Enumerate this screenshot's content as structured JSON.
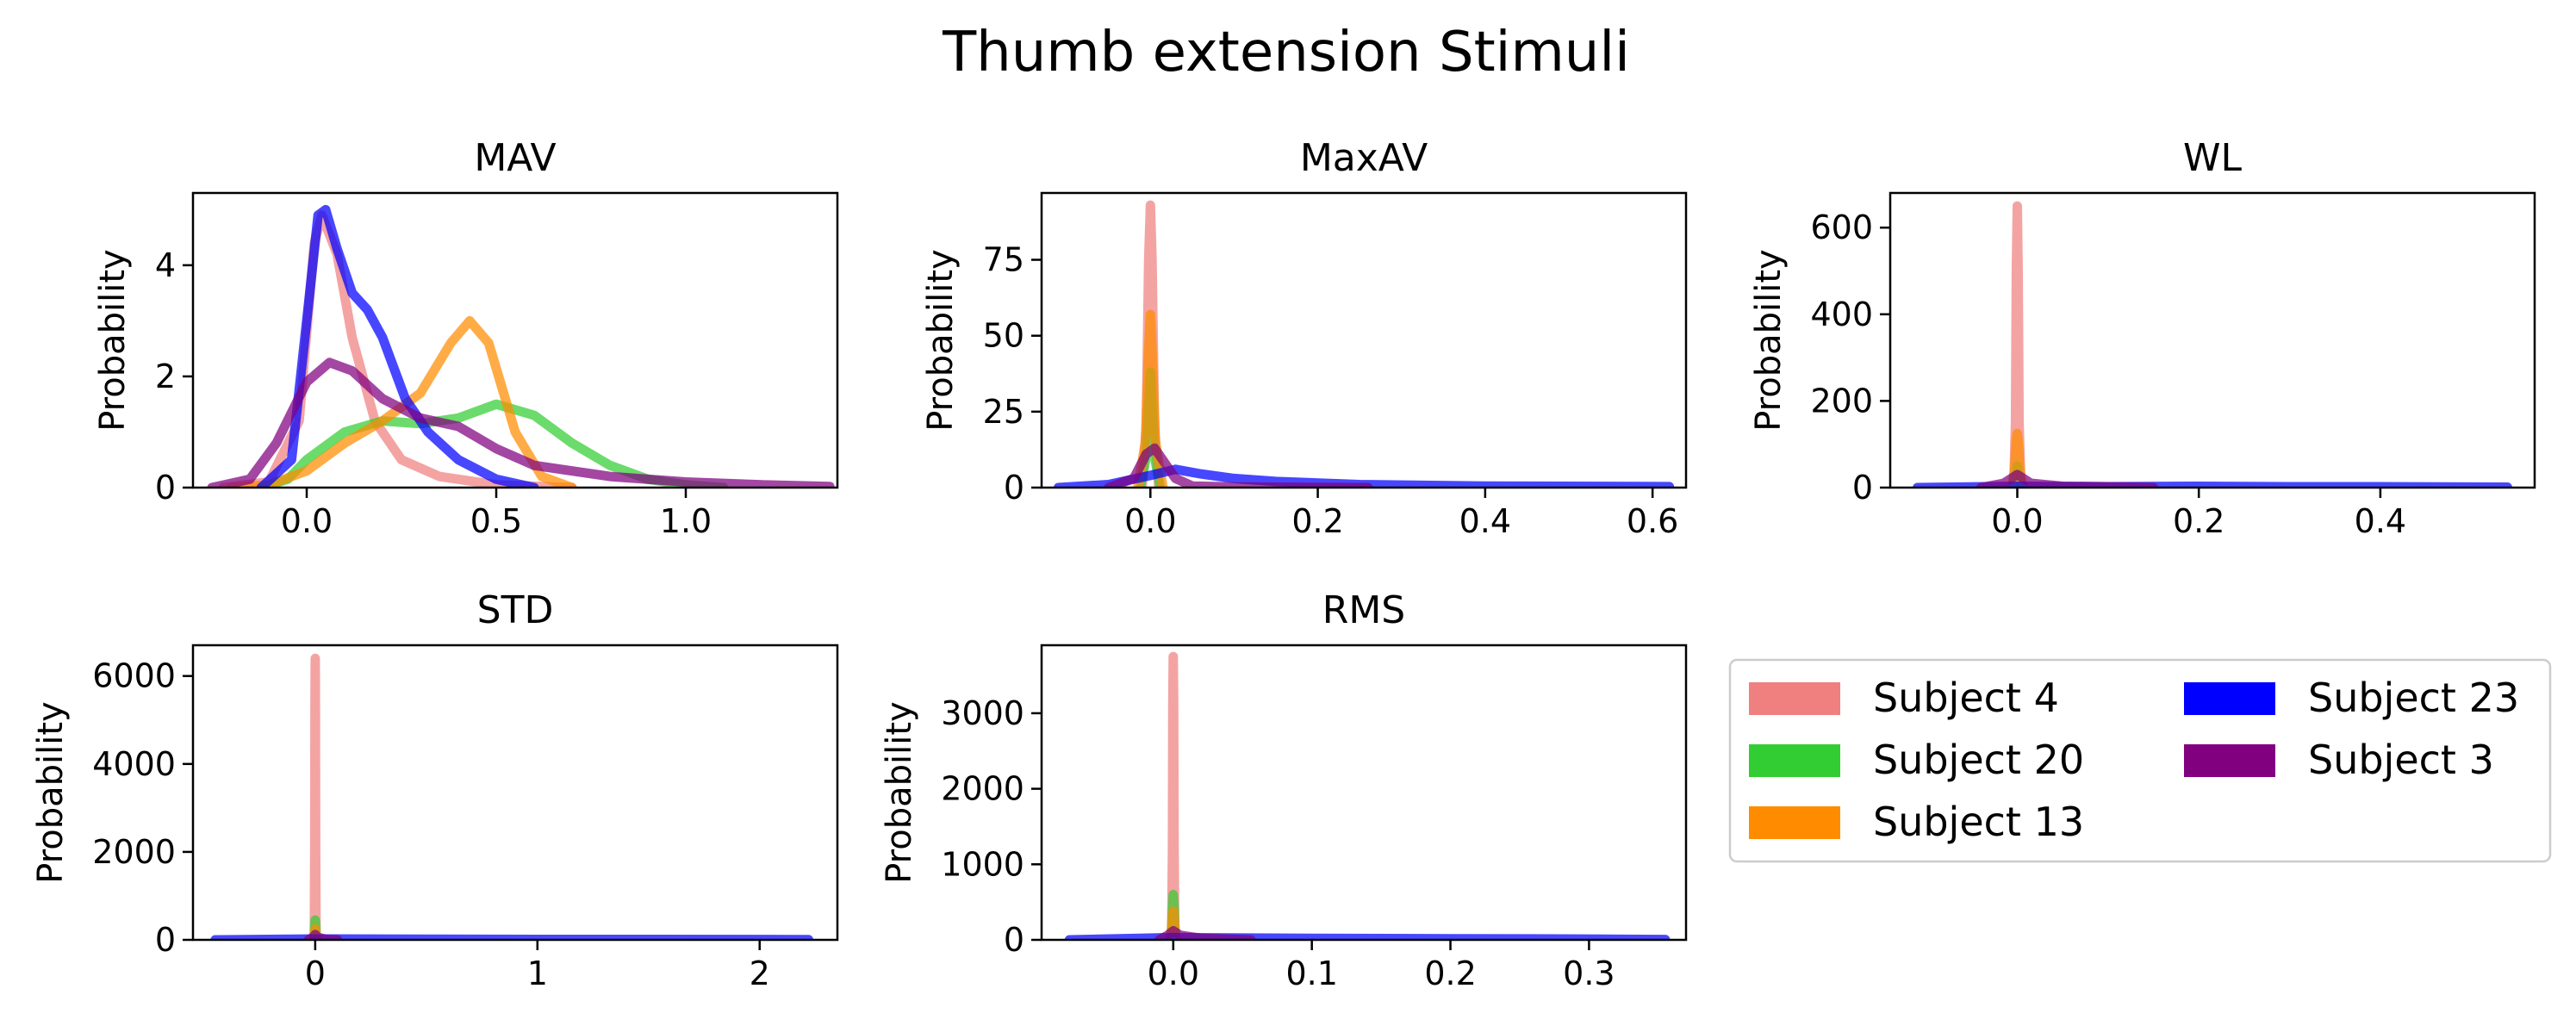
{
  "figure": {
    "title": "Thumb extension Stimuli"
  },
  "colors": {
    "Subject 4": "#f08080",
    "Subject 20": "#32cd32",
    "Subject 13": "#ff8c00",
    "Subject 23": "#0000ff",
    "Subject 3": "#800080"
  },
  "legend": {
    "placement": "lower-right",
    "columns": 2,
    "entries": [
      "Subject 4",
      "Subject 20",
      "Subject 13",
      "Subject 23",
      "Subject 3"
    ]
  },
  "chart_data": [
    {
      "type": "line",
      "title": "MAV",
      "xlabel": "",
      "ylabel": "Probability",
      "xlim": [
        -0.3,
        1.4
      ],
      "ylim": [
        0,
        5.3
      ],
      "xticks": [
        0.0,
        0.5,
        1.0
      ],
      "xtick_labels": [
        "0.0",
        "0.5",
        "1.0"
      ],
      "yticks": [
        0,
        2,
        4
      ],
      "ytick_labels": [
        "0",
        "2",
        "4"
      ],
      "series": [
        {
          "name": "Subject 4",
          "points": [
            [
              -0.22,
              0
            ],
            [
              -0.1,
              0.1
            ],
            [
              -0.02,
              1.2
            ],
            [
              0.02,
              4.4
            ],
            [
              0.04,
              4.9
            ],
            [
              0.08,
              4.2
            ],
            [
              0.12,
              2.7
            ],
            [
              0.18,
              1.2
            ],
            [
              0.25,
              0.5
            ],
            [
              0.35,
              0.2
            ],
            [
              0.5,
              0.05
            ],
            [
              0.7,
              0
            ]
          ]
        },
        {
          "name": "Subject 20",
          "points": [
            [
              -0.12,
              0
            ],
            [
              -0.05,
              0.15
            ],
            [
              0.0,
              0.5
            ],
            [
              0.1,
              1.0
            ],
            [
              0.2,
              1.2
            ],
            [
              0.3,
              1.15
            ],
            [
              0.4,
              1.25
            ],
            [
              0.5,
              1.5
            ],
            [
              0.6,
              1.3
            ],
            [
              0.7,
              0.8
            ],
            [
              0.8,
              0.4
            ],
            [
              0.9,
              0.15
            ],
            [
              1.0,
              0.05
            ],
            [
              1.1,
              0
            ]
          ]
        },
        {
          "name": "Subject 13",
          "points": [
            [
              -0.2,
              0
            ],
            [
              -0.1,
              0.05
            ],
            [
              0.0,
              0.3
            ],
            [
              0.1,
              0.8
            ],
            [
              0.2,
              1.2
            ],
            [
              0.3,
              1.7
            ],
            [
              0.38,
              2.6
            ],
            [
              0.43,
              3.0
            ],
            [
              0.48,
              2.6
            ],
            [
              0.55,
              1.0
            ],
            [
              0.62,
              0.2
            ],
            [
              0.7,
              0
            ]
          ]
        },
        {
          "name": "Subject 23",
          "points": [
            [
              -0.12,
              0
            ],
            [
              -0.04,
              0.5
            ],
            [
              0.0,
              3.0
            ],
            [
              0.03,
              4.9
            ],
            [
              0.05,
              5.0
            ],
            [
              0.08,
              4.3
            ],
            [
              0.12,
              3.5
            ],
            [
              0.16,
              3.2
            ],
            [
              0.2,
              2.7
            ],
            [
              0.26,
              1.6
            ],
            [
              0.32,
              1.0
            ],
            [
              0.4,
              0.5
            ],
            [
              0.5,
              0.15
            ],
            [
              0.6,
              0
            ]
          ]
        },
        {
          "name": "Subject 3",
          "points": [
            [
              -0.25,
              0
            ],
            [
              -0.15,
              0.15
            ],
            [
              -0.08,
              0.8
            ],
            [
              0.0,
              1.9
            ],
            [
              0.06,
              2.25
            ],
            [
              0.12,
              2.1
            ],
            [
              0.2,
              1.6
            ],
            [
              0.3,
              1.25
            ],
            [
              0.4,
              1.1
            ],
            [
              0.5,
              0.7
            ],
            [
              0.6,
              0.4
            ],
            [
              0.8,
              0.2
            ],
            [
              1.0,
              0.1
            ],
            [
              1.2,
              0.05
            ],
            [
              1.38,
              0.02
            ]
          ]
        }
      ]
    },
    {
      "type": "line",
      "title": "MaxAV",
      "xlabel": "",
      "ylabel": "Probability",
      "xlim": [
        -0.13,
        0.64
      ],
      "ylim": [
        0,
        97
      ],
      "xticks": [
        0.0,
        0.2,
        0.4,
        0.6
      ],
      "xtick_labels": [
        "0.0",
        "0.2",
        "0.4",
        "0.6"
      ],
      "yticks": [
        0,
        25,
        50,
        75
      ],
      "ytick_labels": [
        "0",
        "25",
        "50",
        "75"
      ],
      "series": [
        {
          "name": "Subject 4",
          "points": [
            [
              -0.01,
              0
            ],
            [
              -0.005,
              20
            ],
            [
              -0.002,
              75
            ],
            [
              0.0,
              93
            ],
            [
              0.002,
              75
            ],
            [
              0.005,
              20
            ],
            [
              0.01,
              0
            ]
          ]
        },
        {
          "name": "Subject 20",
          "points": [
            [
              -0.012,
              0
            ],
            [
              -0.005,
              10
            ],
            [
              0.0,
              38
            ],
            [
              0.005,
              10
            ],
            [
              0.012,
              0
            ]
          ]
        },
        {
          "name": "Subject 13",
          "points": [
            [
              -0.015,
              0
            ],
            [
              -0.006,
              15
            ],
            [
              -0.002,
              45
            ],
            [
              0.0,
              57
            ],
            [
              0.002,
              45
            ],
            [
              0.006,
              15
            ],
            [
              0.015,
              0
            ]
          ]
        },
        {
          "name": "Subject 23",
          "points": [
            [
              -0.11,
              0
            ],
            [
              -0.05,
              1
            ],
            [
              0.0,
              4
            ],
            [
              0.03,
              6
            ],
            [
              0.06,
              4.5
            ],
            [
              0.1,
              3
            ],
            [
              0.15,
              2
            ],
            [
              0.25,
              1
            ],
            [
              0.4,
              0.5
            ],
            [
              0.62,
              0.3
            ]
          ]
        },
        {
          "name": "Subject 3",
          "points": [
            [
              -0.05,
              0
            ],
            [
              -0.02,
              3
            ],
            [
              -0.005,
              11
            ],
            [
              0.005,
              13
            ],
            [
              0.015,
              9
            ],
            [
              0.03,
              3
            ],
            [
              0.05,
              0.5
            ],
            [
              0.1,
              0.2
            ],
            [
              0.26,
              0
            ]
          ]
        }
      ]
    },
    {
      "type": "line",
      "title": "WL",
      "xlabel": "",
      "ylabel": "Probability",
      "xlim": [
        -0.14,
        0.57
      ],
      "ylim": [
        0,
        680
      ],
      "xticks": [
        0.0,
        0.2,
        0.4
      ],
      "xtick_labels": [
        "0.0",
        "0.2",
        "0.4"
      ],
      "yticks": [
        0,
        200,
        400,
        600
      ],
      "ytick_labels": [
        "0",
        "200",
        "400",
        "600"
      ],
      "series": [
        {
          "name": "Subject 4",
          "points": [
            [
              -0.004,
              0
            ],
            [
              -0.002,
              150
            ],
            [
              -0.001,
              500
            ],
            [
              0.0,
              650
            ],
            [
              0.001,
              500
            ],
            [
              0.002,
              150
            ],
            [
              0.004,
              0
            ]
          ]
        },
        {
          "name": "Subject 20",
          "points": [
            [
              -0.005,
              0
            ],
            [
              -0.002,
              25
            ],
            [
              0.0,
              50
            ],
            [
              0.002,
              25
            ],
            [
              0.005,
              0
            ]
          ]
        },
        {
          "name": "Subject 13",
          "points": [
            [
              -0.006,
              0
            ],
            [
              -0.003,
              40
            ],
            [
              -0.001,
              110
            ],
            [
              0.0,
              125
            ],
            [
              0.001,
              110
            ],
            [
              0.003,
              40
            ],
            [
              0.006,
              0
            ]
          ]
        },
        {
          "name": "Subject 23",
          "points": [
            [
              -0.11,
              0
            ],
            [
              0.0,
              3
            ],
            [
              0.1,
              2
            ],
            [
              0.2,
              3
            ],
            [
              0.3,
              2
            ],
            [
              0.4,
              2
            ],
            [
              0.54,
              1
            ]
          ]
        },
        {
          "name": "Subject 3",
          "points": [
            [
              -0.04,
              0
            ],
            [
              -0.015,
              10
            ],
            [
              0.0,
              30
            ],
            [
              0.015,
              10
            ],
            [
              0.05,
              3
            ],
            [
              0.1,
              2
            ],
            [
              0.15,
              0
            ]
          ]
        }
      ]
    },
    {
      "type": "line",
      "title": "STD",
      "xlabel": "",
      "ylabel": "Probability",
      "xlim": [
        -0.55,
        2.35
      ],
      "ylim": [
        0,
        6700
      ],
      "xticks": [
        0,
        1,
        2
      ],
      "xtick_labels": [
        "0",
        "1",
        "2"
      ],
      "yticks": [
        0,
        2000,
        4000,
        6000
      ],
      "ytick_labels": [
        "0",
        "2000",
        "4000",
        "6000"
      ],
      "series": [
        {
          "name": "Subject 4",
          "points": [
            [
              -0.004,
              0
            ],
            [
              -0.002,
              2000
            ],
            [
              -0.001,
              5200
            ],
            [
              0.0,
              6400
            ],
            [
              0.001,
              5200
            ],
            [
              0.002,
              2000
            ],
            [
              0.004,
              0
            ]
          ]
        },
        {
          "name": "Subject 20",
          "points": [
            [
              -0.005,
              0
            ],
            [
              -0.002,
              300
            ],
            [
              0.0,
              450
            ],
            [
              0.002,
              300
            ],
            [
              0.005,
              0
            ]
          ]
        },
        {
          "name": "Subject 13",
          "points": [
            [
              -0.006,
              0
            ],
            [
              -0.002,
              150
            ],
            [
              0.0,
              250
            ],
            [
              0.002,
              150
            ],
            [
              0.006,
              0
            ]
          ]
        },
        {
          "name": "Subject 23",
          "points": [
            [
              -0.45,
              0
            ],
            [
              0.0,
              20
            ],
            [
              0.5,
              15
            ],
            [
              1.0,
              10
            ],
            [
              1.5,
              10
            ],
            [
              2.22,
              5
            ]
          ]
        },
        {
          "name": "Subject 3",
          "points": [
            [
              -0.03,
              0
            ],
            [
              -0.01,
              60
            ],
            [
              0.0,
              120
            ],
            [
              0.01,
              60
            ],
            [
              0.05,
              10
            ],
            [
              0.1,
              0
            ]
          ]
        }
      ]
    },
    {
      "type": "line",
      "title": "RMS",
      "xlabel": "",
      "ylabel": "Probability",
      "xlim": [
        -0.095,
        0.37
      ],
      "ylim": [
        0,
        3900
      ],
      "xticks": [
        0.0,
        0.1,
        0.2,
        0.3
      ],
      "xtick_labels": [
        "0.0",
        "0.1",
        "0.2",
        "0.3"
      ],
      "yticks": [
        0,
        1000,
        2000,
        3000
      ],
      "ytick_labels": [
        "0",
        "1000",
        "2000",
        "3000"
      ],
      "series": [
        {
          "name": "Subject 4",
          "points": [
            [
              -0.0012,
              0
            ],
            [
              -0.0006,
              1200
            ],
            [
              -0.0003,
              3100
            ],
            [
              0.0,
              3750
            ],
            [
              0.0003,
              3100
            ],
            [
              0.0006,
              1200
            ],
            [
              0.0012,
              0
            ]
          ]
        },
        {
          "name": "Subject 20",
          "points": [
            [
              -0.0015,
              0
            ],
            [
              -0.0006,
              400
            ],
            [
              0.0,
              600
            ],
            [
              0.0006,
              400
            ],
            [
              0.0015,
              0
            ]
          ]
        },
        {
          "name": "Subject 13",
          "points": [
            [
              -0.002,
              0
            ],
            [
              -0.0008,
              250
            ],
            [
              0.0,
              380
            ],
            [
              0.0008,
              250
            ],
            [
              0.002,
              0
            ]
          ]
        },
        {
          "name": "Subject 23",
          "points": [
            [
              -0.075,
              0
            ],
            [
              0.0,
              30
            ],
            [
              0.1,
              20
            ],
            [
              0.2,
              15
            ],
            [
              0.3,
              10
            ],
            [
              0.355,
              5
            ]
          ]
        },
        {
          "name": "Subject 3",
          "points": [
            [
              -0.01,
              0
            ],
            [
              -0.004,
              60
            ],
            [
              0.0,
              120
            ],
            [
              0.005,
              60
            ],
            [
              0.02,
              20
            ],
            [
              0.056,
              0
            ]
          ]
        }
      ]
    }
  ]
}
